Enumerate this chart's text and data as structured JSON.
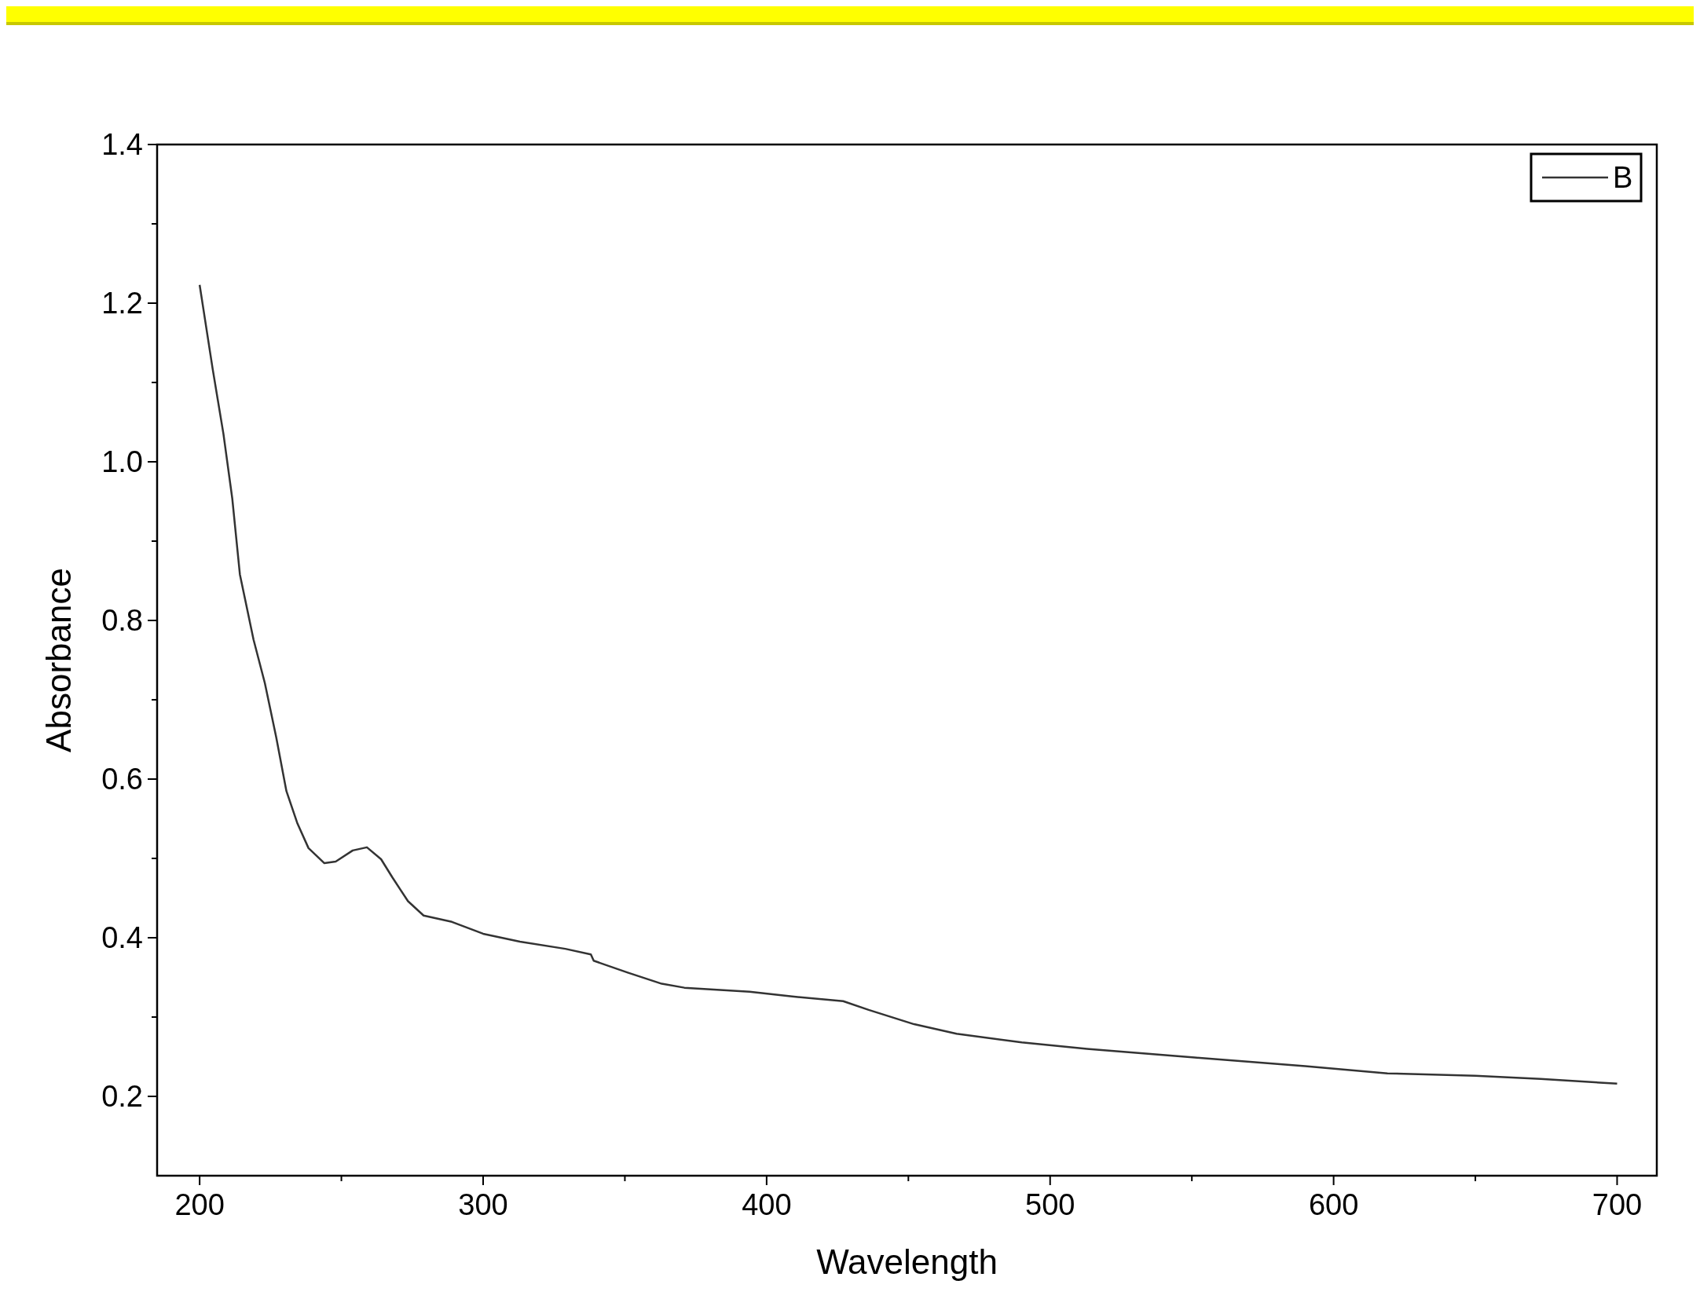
{
  "chart_data": {
    "type": "line",
    "xlabel": "Wavelength",
    "ylabel": "Absorbance",
    "xlim": [
      185,
      714
    ],
    "ylim": [
      0.1,
      1.4
    ],
    "xticks": [
      200,
      {
        "value": 250,
        "label": null
      },
      300,
      {
        "value": 350,
        "label": null
      },
      400,
      {
        "value": 450,
        "label": null
      },
      500,
      {
        "value": 550,
        "label": null
      },
      600,
      {
        "value": 650,
        "label": null
      },
      700
    ],
    "yticks": [
      0.2,
      {
        "value": 0.3,
        "label": null
      },
      0.4,
      {
        "value": 0.5,
        "label": null
      },
      0.6,
      {
        "value": 0.7,
        "label": null
      },
      0.8,
      {
        "value": 0.9,
        "label": null
      },
      {
        "value": 1,
        "label": "1.0"
      },
      {
        "value": 1.1,
        "label": null
      },
      1.2,
      {
        "value": 1.3,
        "label": null
      },
      1.4
    ],
    "grid": false,
    "legend": "top right",
    "line_style": "solid",
    "marker": "none",
    "series": [
      {
        "name": "B",
        "color": "#333333",
        "x": [
          200,
          204.6,
          208.4,
          211.5,
          214.2,
          219,
          223,
          227,
          230.6,
          234.5,
          238.4,
          244,
          248,
          254,
          259,
          264,
          268,
          273.5,
          279,
          289,
          300,
          313,
          329,
          338,
          339,
          351,
          363,
          371,
          394,
          409,
          427,
          436,
          452,
          467,
          490,
          513,
          551,
          590,
          619,
          650,
          673,
          700
        ],
        "values": [
          1.223,
          1.117,
          1.035,
          0.954,
          0.858,
          0.776,
          0.721,
          0.653,
          0.585,
          0.544,
          0.513,
          0.494,
          0.496,
          0.51,
          0.514,
          0.499,
          0.476,
          0.446,
          0.428,
          0.42,
          0.405,
          0.395,
          0.386,
          0.379,
          0.371,
          0.356,
          0.342,
          0.337,
          0.332,
          0.326,
          0.32,
          0.309,
          0.291,
          0.279,
          0.268,
          0.26,
          0.249,
          0.238,
          0.229,
          0.226,
          0.222,
          0.216
        ]
      }
    ]
  }
}
